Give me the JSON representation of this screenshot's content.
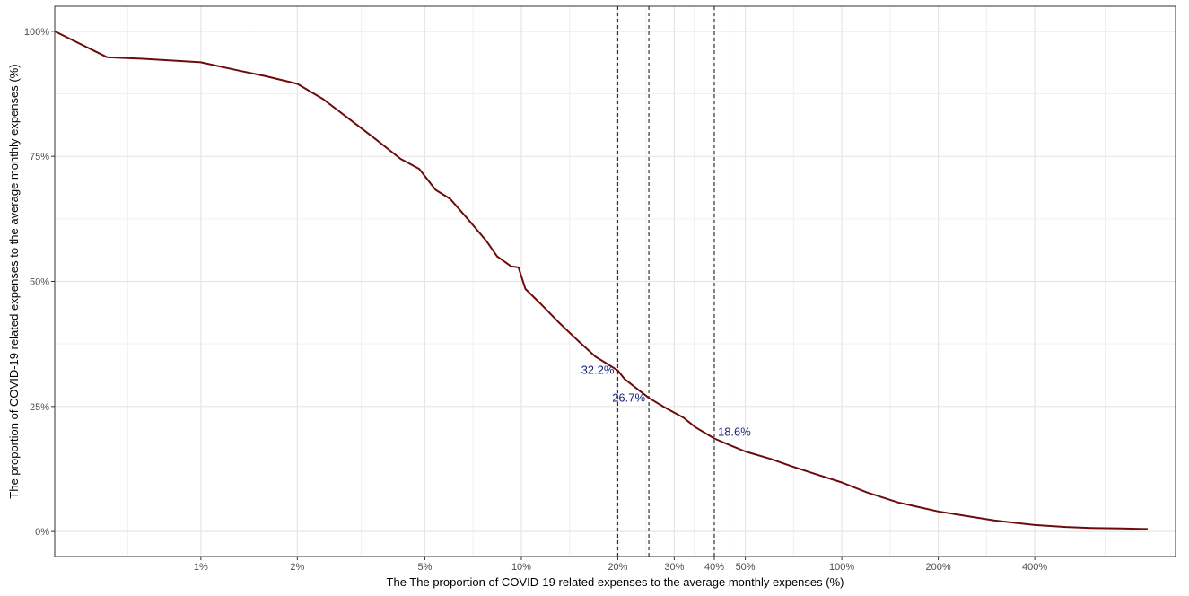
{
  "chart_data": {
    "type": "line",
    "xlabel": "The The proportion of COVID-19 related expenses to the average monthly expenses (%)",
    "ylabel": "The proportion of COVID-19 related expenses to the average monthly expenses (%)",
    "x_scale": "log",
    "xlim": [
      0.0035,
      11.0
    ],
    "ylim": [
      -0.05,
      1.05
    ],
    "x_ticks": [
      {
        "value": 0.01,
        "label": "1%"
      },
      {
        "value": 0.02,
        "label": "2%"
      },
      {
        "value": 0.05,
        "label": "5%"
      },
      {
        "value": 0.1,
        "label": "10%"
      },
      {
        "value": 0.2,
        "label": "20%"
      },
      {
        "value": 0.3,
        "label": "30%"
      },
      {
        "value": 0.4,
        "label": "40%"
      },
      {
        "value": 0.5,
        "label": "50%"
      },
      {
        "value": 1.0,
        "label": "100%"
      },
      {
        "value": 2.0,
        "label": "200%"
      },
      {
        "value": 4.0,
        "label": "400%"
      }
    ],
    "y_ticks": [
      {
        "value": 0.0,
        "label": "0%"
      },
      {
        "value": 0.25,
        "label": "25%"
      },
      {
        "value": 0.5,
        "label": "50%"
      },
      {
        "value": 0.75,
        "label": "75%"
      },
      {
        "value": 1.0,
        "label": "100%"
      }
    ],
    "grid": true,
    "series": [
      {
        "color": "#6b0b0b",
        "points": [
          [
            0.0035,
            1.0
          ],
          [
            0.0051,
            0.948
          ],
          [
            0.0066,
            0.945
          ],
          [
            0.01,
            0.938
          ],
          [
            0.013,
            0.922
          ],
          [
            0.016,
            0.91
          ],
          [
            0.02,
            0.895
          ],
          [
            0.024,
            0.865
          ],
          [
            0.029,
            0.825
          ],
          [
            0.035,
            0.785
          ],
          [
            0.042,
            0.745
          ],
          [
            0.048,
            0.725
          ],
          [
            0.054,
            0.683
          ],
          [
            0.06,
            0.665
          ],
          [
            0.068,
            0.625
          ],
          [
            0.078,
            0.58
          ],
          [
            0.084,
            0.55
          ],
          [
            0.093,
            0.53
          ],
          [
            0.098,
            0.528
          ],
          [
            0.103,
            0.485
          ],
          [
            0.115,
            0.455
          ],
          [
            0.13,
            0.42
          ],
          [
            0.15,
            0.382
          ],
          [
            0.17,
            0.35
          ],
          [
            0.2,
            0.322
          ],
          [
            0.21,
            0.305
          ],
          [
            0.23,
            0.285
          ],
          [
            0.25,
            0.267
          ],
          [
            0.28,
            0.248
          ],
          [
            0.32,
            0.228
          ],
          [
            0.35,
            0.208
          ],
          [
            0.4,
            0.186
          ],
          [
            0.45,
            0.172
          ],
          [
            0.5,
            0.16
          ],
          [
            0.6,
            0.145
          ],
          [
            0.7,
            0.13
          ],
          [
            0.8,
            0.118
          ],
          [
            1.0,
            0.098
          ],
          [
            1.2,
            0.078
          ],
          [
            1.5,
            0.058
          ],
          [
            2.0,
            0.04
          ],
          [
            2.5,
            0.03
          ],
          [
            3.0,
            0.022
          ],
          [
            4.0,
            0.013
          ],
          [
            5.0,
            0.009
          ],
          [
            6.0,
            0.007
          ],
          [
            7.5,
            0.006
          ],
          [
            9.0,
            0.005
          ]
        ]
      }
    ],
    "reference_lines": [
      {
        "x": 0.2,
        "y": 0.322,
        "label": "32.2%",
        "label_side": "left"
      },
      {
        "x": 0.25,
        "y": 0.267,
        "label": "26.7%",
        "label_side": "left"
      },
      {
        "x": 0.4,
        "y": 0.186,
        "label": "18.6%",
        "label_side": "right"
      }
    ]
  }
}
